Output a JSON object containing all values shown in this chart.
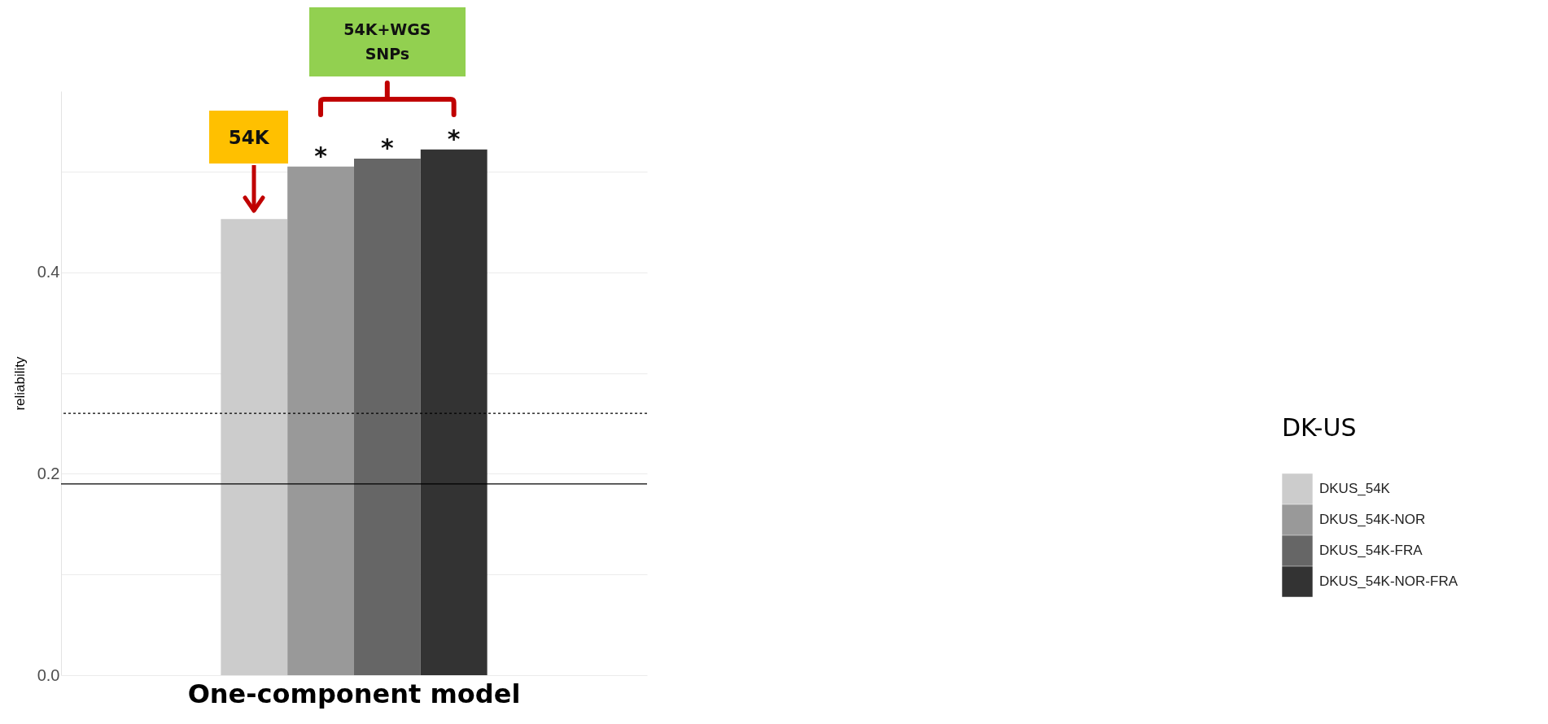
{
  "chart_data": {
    "type": "bar",
    "ylabel": "reliability",
    "legend_title": "DK-US",
    "categories": [
      "One-component model"
    ],
    "series": [
      {
        "name": "DKUS_54K",
        "color": "#cccccc",
        "values": [
          0.453
        ]
      },
      {
        "name": "DKUS_54K-NOR",
        "color": "#999999",
        "values": [
          0.505
        ]
      },
      {
        "name": "DKUS_54K-FRA",
        "color": "#666666",
        "values": [
          0.513
        ]
      },
      {
        "name": "DKUS_54K-NOR-FRA",
        "color": "#333333",
        "values": [
          0.522
        ]
      }
    ],
    "ylim": [
      0,
      0.58
    ],
    "yticks": [
      {
        "value": 0,
        "label": "0.0"
      },
      {
        "value": 0.1,
        "label": null
      },
      {
        "value": 0.2,
        "label": "0.2"
      },
      {
        "value": 0.3,
        "label": null
      },
      {
        "value": 0.4,
        "label": "0.4"
      },
      {
        "value": 0.5,
        "label": null
      }
    ],
    "grid": "y",
    "legend": "right",
    "ref_lines": [
      {
        "axis": "y",
        "value": 0.26,
        "color": "#000000",
        "line_style": "dotted"
      },
      {
        "axis": "y",
        "value": 0.19,
        "color": "#000000",
        "line_style": "solid"
      }
    ],
    "annotations": [
      "54K",
      "54K+WGS SNPs",
      "*",
      "*",
      "*"
    ]
  }
}
